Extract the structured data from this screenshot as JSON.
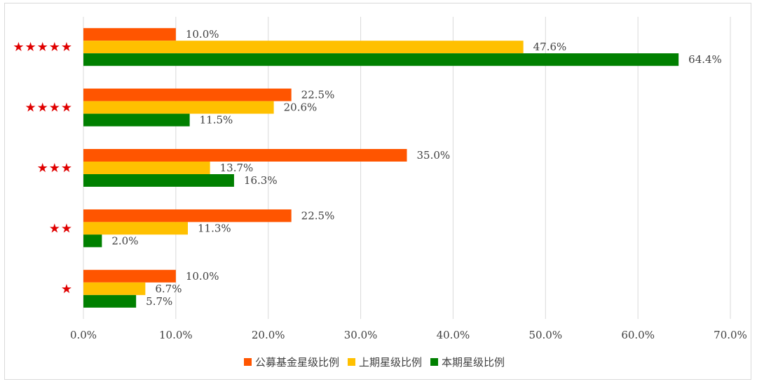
{
  "chart_data": {
    "type": "bar",
    "orientation": "horizontal",
    "categories": [
      "★★★★★",
      "★★★★",
      "★★★",
      "★★",
      "★"
    ],
    "series": [
      {
        "name": "公募基金星级比例",
        "color": "#ff5500",
        "values": [
          10.0,
          22.5,
          35.0,
          22.5,
          10.0
        ]
      },
      {
        "name": "上期星级比例",
        "color": "#ffc000",
        "values": [
          47.6,
          20.6,
          13.7,
          11.3,
          6.7
        ]
      },
      {
        "name": "本期星级比例",
        "color": "#008000",
        "values": [
          64.4,
          11.5,
          16.3,
          2.0,
          5.7
        ]
      }
    ],
    "xlim": [
      0,
      70
    ],
    "xticks": [
      "0.0%",
      "10.0%",
      "20.0%",
      "30.0%",
      "40.0%",
      "50.0%",
      "60.0%",
      "70.0%"
    ],
    "value_suffix": "%",
    "grid": true,
    "legend_position": "bottom",
    "star_color": "#e00000",
    "gridline_color": "#d9d9d9"
  }
}
